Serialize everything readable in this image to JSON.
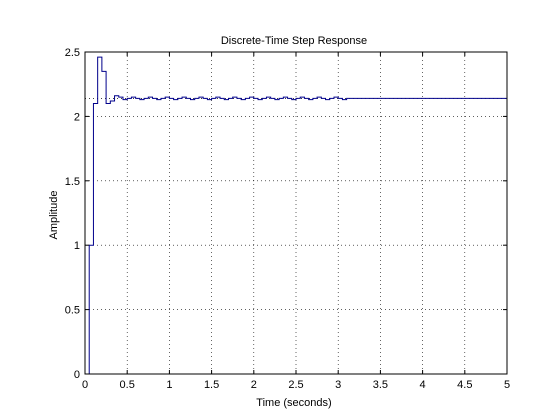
{
  "window": {
    "background": "#ffffff"
  },
  "chart_data": {
    "type": "line",
    "title": "Discrete-Time Step Response",
    "xlabel": "Time (seconds)",
    "ylabel": "Amplitude",
    "xlim": [
      0,
      5
    ],
    "ylim": [
      0,
      2.5
    ],
    "xticks": [
      0,
      0.5,
      1,
      1.5,
      2,
      2.5,
      3,
      3.5,
      4,
      4.5,
      5
    ],
    "xtick_labels": [
      "0",
      "0.5",
      "1",
      "1.5",
      "2",
      "2.5",
      "3",
      "3.5",
      "4",
      "4.5",
      "5"
    ],
    "yticks": [
      0,
      0.5,
      1,
      1.5,
      2,
      2.5
    ],
    "ytick_labels": [
      "0",
      "0.5",
      "1",
      "1.5",
      "2",
      "2.5"
    ],
    "grid": true,
    "line_color": "#00008b",
    "reference_line": {
      "value": 2.14,
      "style": "dotted"
    },
    "series": [
      {
        "stairs": true,
        "x": [
          0,
          0.05,
          0.1,
          0.15,
          0.2,
          0.25,
          0.3,
          0.35,
          0.4,
          0.45,
          0.5,
          0.55,
          0.6,
          0.65,
          0.7,
          0.75,
          0.8,
          0.85,
          0.9,
          0.95,
          1.0,
          1.05,
          1.1,
          1.15,
          1.2,
          1.25,
          1.3,
          1.35,
          1.4,
          1.45,
          1.5,
          1.55,
          1.6,
          1.65,
          1.7,
          1.75,
          1.8,
          1.85,
          1.9,
          1.95,
          2.0,
          2.05,
          2.1,
          2.15,
          2.2,
          2.25,
          2.3,
          2.35,
          2.4,
          2.45,
          2.5,
          2.55,
          2.6,
          2.65,
          2.7,
          2.75,
          2.8,
          2.85,
          2.9,
          2.95,
          3.0,
          3.05,
          3.1,
          3.15,
          5.0
        ],
        "y": [
          0,
          1.0,
          2.1,
          2.46,
          2.35,
          2.1,
          2.12,
          2.16,
          2.15,
          2.13,
          2.14,
          2.15,
          2.14,
          2.13,
          2.14,
          2.15,
          2.14,
          2.13,
          2.14,
          2.15,
          2.14,
          2.13,
          2.14,
          2.15,
          2.14,
          2.13,
          2.14,
          2.15,
          2.14,
          2.13,
          2.14,
          2.15,
          2.14,
          2.13,
          2.14,
          2.15,
          2.14,
          2.13,
          2.14,
          2.15,
          2.14,
          2.13,
          2.14,
          2.15,
          2.14,
          2.13,
          2.14,
          2.15,
          2.14,
          2.13,
          2.14,
          2.15,
          2.14,
          2.13,
          2.14,
          2.15,
          2.14,
          2.13,
          2.14,
          2.15,
          2.14,
          2.13,
          2.14,
          2.14,
          2.14
        ]
      }
    ]
  }
}
